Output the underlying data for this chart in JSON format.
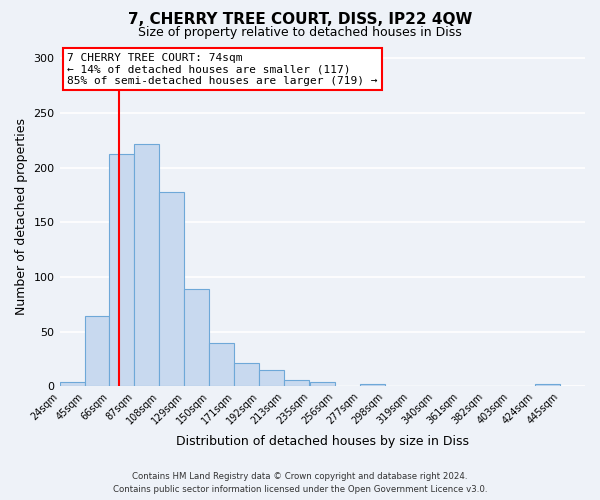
{
  "title": "7, CHERRY TREE COURT, DISS, IP22 4QW",
  "subtitle": "Size of property relative to detached houses in Diss",
  "xlabel": "Distribution of detached houses by size in Diss",
  "ylabel": "Number of detached properties",
  "bar_color": "#c8d9ef",
  "bar_edge_color": "#6ea8d8",
  "bin_labels": [
    "24sqm",
    "45sqm",
    "66sqm",
    "87sqm",
    "108sqm",
    "129sqm",
    "150sqm",
    "171sqm",
    "192sqm",
    "213sqm",
    "235sqm",
    "256sqm",
    "277sqm",
    "298sqm",
    "319sqm",
    "340sqm",
    "361sqm",
    "382sqm",
    "403sqm",
    "424sqm",
    "445sqm"
  ],
  "bin_edges": [
    24,
    45,
    66,
    87,
    108,
    129,
    150,
    171,
    192,
    213,
    235,
    256,
    277,
    298,
    319,
    340,
    361,
    382,
    403,
    424,
    445
  ],
  "bar_heights": [
    4,
    64,
    213,
    222,
    178,
    89,
    40,
    21,
    15,
    6,
    4,
    0,
    2,
    0,
    0,
    0,
    0,
    0,
    0,
    2
  ],
  "ylim": [
    0,
    310
  ],
  "yticks": [
    0,
    50,
    100,
    150,
    200,
    250,
    300
  ],
  "property_line_x": 74,
  "property_line_color": "red",
  "annotation_title": "7 CHERRY TREE COURT: 74sqm",
  "annotation_line1": "← 14% of detached houses are smaller (117)",
  "annotation_line2": "85% of semi-detached houses are larger (719) →",
  "annotation_box_color": "white",
  "annotation_box_edge_color": "red",
  "footer_line1": "Contains HM Land Registry data © Crown copyright and database right 2024.",
  "footer_line2": "Contains public sector information licensed under the Open Government Licence v3.0.",
  "background_color": "#eef2f8",
  "grid_color": "white"
}
